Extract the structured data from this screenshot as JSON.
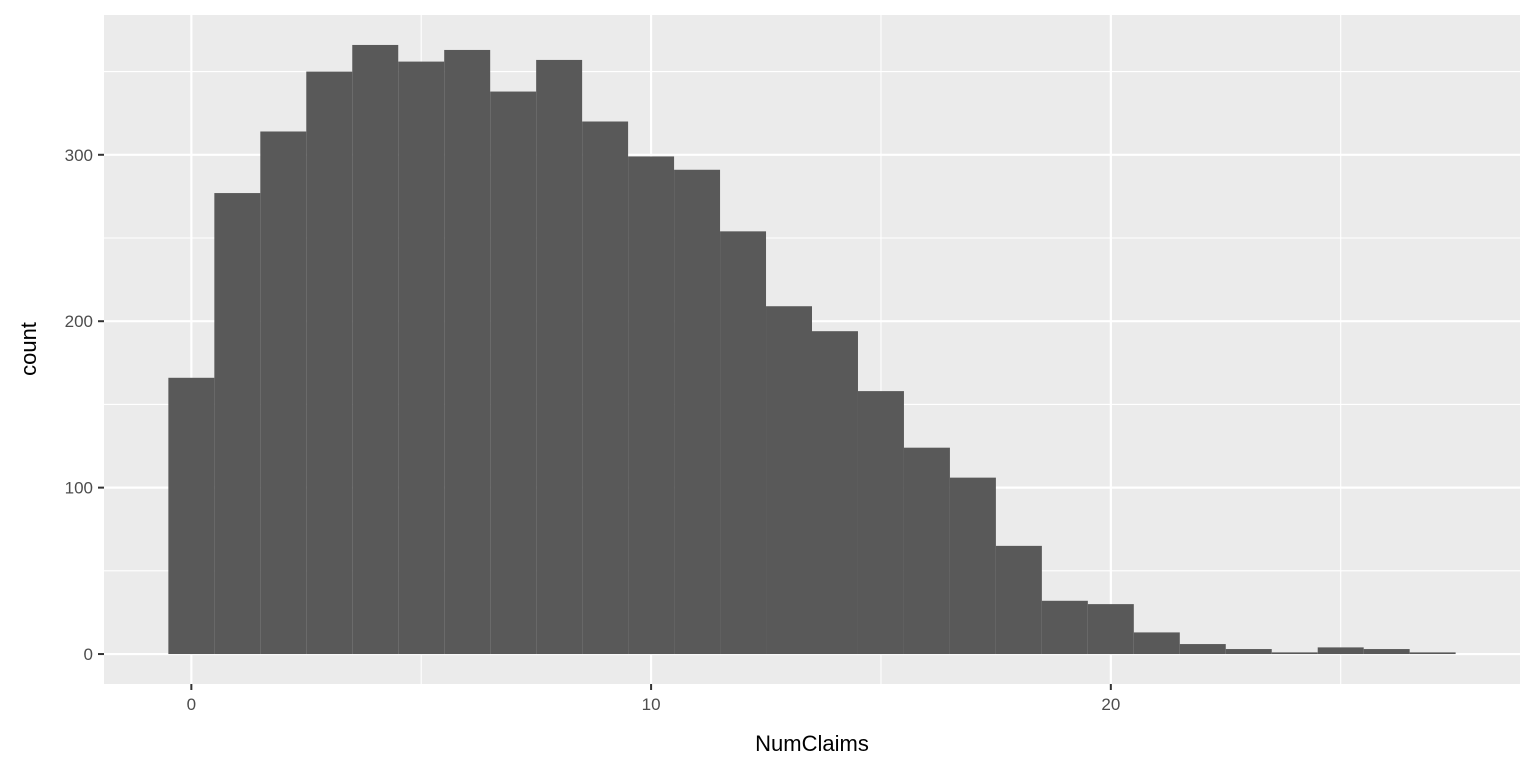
{
  "chart_data": {
    "type": "bar",
    "title": "",
    "xlabel": "NumClaims",
    "ylabel": "count",
    "xlim": [
      -1.9,
      28.9
    ],
    "ylim": [
      -18,
      384
    ],
    "x_ticks": [
      0,
      10,
      20
    ],
    "y_ticks": [
      0,
      100,
      200,
      300
    ],
    "grid": true,
    "panel_background": "#ebebeb",
    "bar_color": "#595959",
    "grid_color": "#ffffff",
    "bins": [
      {
        "x": 0,
        "count": 166
      },
      {
        "x": 1,
        "count": 277
      },
      {
        "x": 2,
        "count": 314
      },
      {
        "x": 3,
        "count": 350
      },
      {
        "x": 4,
        "count": 366
      },
      {
        "x": 5,
        "count": 356
      },
      {
        "x": 6,
        "count": 363
      },
      {
        "x": 7,
        "count": 338
      },
      {
        "x": 8,
        "count": 357
      },
      {
        "x": 9,
        "count": 320
      },
      {
        "x": 10,
        "count": 299
      },
      {
        "x": 11,
        "count": 291
      },
      {
        "x": 12,
        "count": 254
      },
      {
        "x": 13,
        "count": 209
      },
      {
        "x": 14,
        "count": 194
      },
      {
        "x": 15,
        "count": 158
      },
      {
        "x": 16,
        "count": 124
      },
      {
        "x": 17,
        "count": 106
      },
      {
        "x": 18,
        "count": 65
      },
      {
        "x": 19,
        "count": 32
      },
      {
        "x": 20,
        "count": 30
      },
      {
        "x": 21,
        "count": 13
      },
      {
        "x": 22,
        "count": 6
      },
      {
        "x": 23,
        "count": 3
      },
      {
        "x": 24,
        "count": 1
      },
      {
        "x": 25,
        "count": 4
      },
      {
        "x": 26,
        "count": 3
      },
      {
        "x": 27,
        "count": 1
      }
    ]
  }
}
